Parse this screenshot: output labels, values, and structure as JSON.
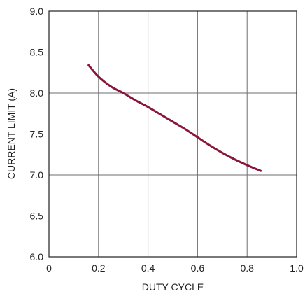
{
  "chart_data": {
    "type": "line",
    "title": "",
    "xlabel": "DUTY CYCLE",
    "ylabel": "CURRENT LIMIT (A)",
    "xlim": [
      0,
      1.0
    ],
    "ylim": [
      6.0,
      9.0
    ],
    "x_ticks": [
      "0",
      "0.2",
      "0.4",
      "0.6",
      "0.8",
      "1.0"
    ],
    "y_ticks": [
      "6.0",
      "6.5",
      "7.0",
      "7.5",
      "8.0",
      "8.5",
      "9.0"
    ],
    "grid": true,
    "series": [
      {
        "color": "#8a1538",
        "x": [
          0.16,
          0.2,
          0.25,
          0.3,
          0.35,
          0.4,
          0.45,
          0.5,
          0.55,
          0.6,
          0.65,
          0.7,
          0.75,
          0.8,
          0.855
        ],
        "y": [
          8.34,
          8.2,
          8.08,
          8.0,
          7.91,
          7.83,
          7.74,
          7.65,
          7.56,
          7.46,
          7.36,
          7.27,
          7.19,
          7.12,
          7.05
        ]
      }
    ]
  }
}
